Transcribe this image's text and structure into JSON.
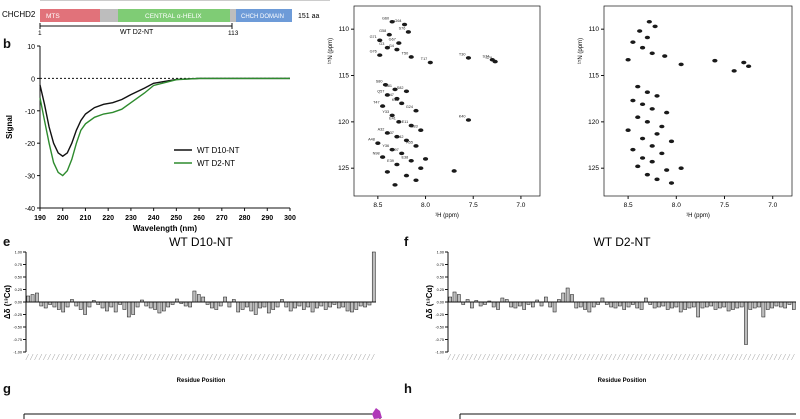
{
  "panels": {
    "b": "b",
    "e": "e",
    "f": "f",
    "g": "g",
    "h": "h"
  },
  "domain_map": {
    "protein": "CHCHD2",
    "length": "151 aa",
    "mts": "MTS",
    "helix": "CENTRAL α-HELIX",
    "chch": "CHCH DOMAIN",
    "construct": "WT D2-NT",
    "start": "1",
    "end": "113"
  },
  "chart_data": [
    {
      "type": "line",
      "id": "cd",
      "xlabel": "Wavelength (nm)",
      "ylabel": "Signal",
      "xlim": [
        190,
        300
      ],
      "ylim": [
        -40,
        10
      ],
      "xticks": [
        190,
        200,
        210,
        220,
        230,
        240,
        250,
        260,
        270,
        280,
        290,
        300
      ],
      "yticks": [
        -40,
        -30,
        -20,
        -10,
        0,
        10
      ],
      "series": [
        {
          "name": "WT D10-NT",
          "color": "#111111",
          "x": [
            190,
            192,
            194,
            196,
            198,
            200,
            202,
            204,
            206,
            208,
            210,
            214,
            218,
            222,
            226,
            230,
            236,
            240,
            250,
            260,
            280,
            300
          ],
          "y": [
            -2,
            -8,
            -15,
            -20,
            -23,
            -24,
            -23,
            -20,
            -16,
            -13,
            -11,
            -9,
            -8,
            -7.5,
            -6.5,
            -5,
            -3,
            -1.5,
            -0.3,
            0,
            0,
            0
          ]
        },
        {
          "name": "WT D2-NT",
          "color": "#2e8b2e",
          "x": [
            190,
            192,
            194,
            196,
            198,
            200,
            202,
            204,
            206,
            208,
            210,
            214,
            218,
            222,
            226,
            230,
            236,
            240,
            250,
            260,
            280,
            300
          ],
          "y": [
            -6,
            -13,
            -20,
            -26,
            -29,
            -30,
            -28.5,
            -25,
            -20,
            -16,
            -14,
            -12,
            -11,
            -10.5,
            -9.5,
            -7.5,
            -4.5,
            -2.2,
            -0.4,
            0,
            0,
            0
          ]
        }
      ]
    },
    {
      "type": "scatter",
      "id": "hsqc1",
      "xlabel": "¹H (ppm)",
      "ylabel": "¹⁵N (ppm)",
      "xticks": [
        8.5,
        8.0,
        7.5,
        7.0
      ],
      "yticks": [
        110,
        115,
        120,
        125
      ],
      "labels": [
        "G60",
        "G64",
        "S76",
        "G58",
        "G71",
        "G67",
        "G3",
        "G4",
        "G76",
        "T50",
        "T17",
        "T30",
        "S74",
        "S79",
        "S80",
        "S81",
        "S82",
        "Q57",
        "S47",
        "K63",
        "T47",
        "G24",
        "Y33",
        "K40",
        "E41",
        "E11",
        "L83",
        "A32",
        "A37",
        "A42",
        "A48",
        "A55",
        "Y36",
        "R97",
        "N98",
        "E38",
        "E39"
      ],
      "points": [
        {
          "x": 8.35,
          "y": 109.2
        },
        {
          "x": 8.22,
          "y": 109.5
        },
        {
          "x": 8.18,
          "y": 110.3
        },
        {
          "x": 8.38,
          "y": 110.6
        },
        {
          "x": 8.48,
          "y": 111.2
        },
        {
          "x": 8.28,
          "y": 111.5
        },
        {
          "x": 8.4,
          "y": 112.0
        },
        {
          "x": 8.3,
          "y": 112.2
        },
        {
          "x": 8.48,
          "y": 112.8
        },
        {
          "x": 8.15,
          "y": 113.0
        },
        {
          "x": 7.95,
          "y": 113.6
        },
        {
          "x": 7.55,
          "y": 113.1
        },
        {
          "x": 7.3,
          "y": 113.3
        },
        {
          "x": 7.27,
          "y": 113.5
        },
        {
          "x": 8.42,
          "y": 116.0
        },
        {
          "x": 8.32,
          "y": 116.5
        },
        {
          "x": 8.2,
          "y": 116.7
        },
        {
          "x": 8.4,
          "y": 117.1
        },
        {
          "x": 8.3,
          "y": 117.5
        },
        {
          "x": 8.25,
          "y": 118.0
        },
        {
          "x": 8.45,
          "y": 118.3
        },
        {
          "x": 8.1,
          "y": 118.8
        },
        {
          "x": 8.35,
          "y": 119.3
        },
        {
          "x": 7.55,
          "y": 119.8
        },
        {
          "x": 8.28,
          "y": 120.0
        },
        {
          "x": 8.15,
          "y": 120.4
        },
        {
          "x": 8.05,
          "y": 120.9
        },
        {
          "x": 8.4,
          "y": 121.2
        },
        {
          "x": 8.3,
          "y": 121.6
        },
        {
          "x": 8.2,
          "y": 122.0
        },
        {
          "x": 8.5,
          "y": 122.3
        },
        {
          "x": 8.1,
          "y": 122.6
        },
        {
          "x": 8.35,
          "y": 123.0
        },
        {
          "x": 8.25,
          "y": 123.4
        },
        {
          "x": 8.45,
          "y": 123.8
        },
        {
          "x": 8.15,
          "y": 124.2
        },
        {
          "x": 8.3,
          "y": 124.6
        },
        {
          "x": 8.05,
          "y": 125.0
        },
        {
          "x": 8.4,
          "y": 125.4
        },
        {
          "x": 8.2,
          "y": 125.8
        },
        {
          "x": 8.1,
          "y": 126.3
        },
        {
          "x": 7.7,
          "y": 125.3
        },
        {
          "x": 8.32,
          "y": 126.8
        },
        {
          "x": 8.0,
          "y": 124.0
        }
      ]
    },
    {
      "type": "scatter",
      "id": "hsqc2",
      "xlabel": "¹H (ppm)",
      "ylabel": "¹⁵N (ppm)",
      "xticks": [
        8.5,
        8.0,
        7.5,
        7.0
      ],
      "yticks": [
        110,
        115,
        120,
        125
      ],
      "points": [
        {
          "x": 8.28,
          "y": 109.2
        },
        {
          "x": 8.22,
          "y": 109.7
        },
        {
          "x": 8.38,
          "y": 110.2
        },
        {
          "x": 8.3,
          "y": 110.9
        },
        {
          "x": 8.45,
          "y": 111.4
        },
        {
          "x": 8.35,
          "y": 112.0
        },
        {
          "x": 8.25,
          "y": 112.6
        },
        {
          "x": 8.12,
          "y": 112.9
        },
        {
          "x": 8.5,
          "y": 113.3
        },
        {
          "x": 7.95,
          "y": 113.8
        },
        {
          "x": 7.6,
          "y": 113.4
        },
        {
          "x": 7.3,
          "y": 113.6
        },
        {
          "x": 7.25,
          "y": 114.0
        },
        {
          "x": 7.4,
          "y": 114.5
        },
        {
          "x": 8.4,
          "y": 116.2
        },
        {
          "x": 8.3,
          "y": 116.8
        },
        {
          "x": 8.2,
          "y": 117.2
        },
        {
          "x": 8.45,
          "y": 117.7
        },
        {
          "x": 8.35,
          "y": 118.1
        },
        {
          "x": 8.25,
          "y": 118.6
        },
        {
          "x": 8.1,
          "y": 119.0
        },
        {
          "x": 8.4,
          "y": 119.5
        },
        {
          "x": 8.3,
          "y": 120.0
        },
        {
          "x": 8.15,
          "y": 120.5
        },
        {
          "x": 8.5,
          "y": 120.9
        },
        {
          "x": 8.2,
          "y": 121.3
        },
        {
          "x": 8.35,
          "y": 121.8
        },
        {
          "x": 8.05,
          "y": 122.1
        },
        {
          "x": 8.25,
          "y": 122.6
        },
        {
          "x": 8.45,
          "y": 123.0
        },
        {
          "x": 8.15,
          "y": 123.4
        },
        {
          "x": 8.35,
          "y": 123.9
        },
        {
          "x": 8.25,
          "y": 124.3
        },
        {
          "x": 8.4,
          "y": 124.8
        },
        {
          "x": 8.1,
          "y": 125.2
        },
        {
          "x": 8.3,
          "y": 125.7
        },
        {
          "x": 8.2,
          "y": 126.2
        },
        {
          "x": 7.95,
          "y": 125.0
        },
        {
          "x": 8.05,
          "y": 126.6
        }
      ]
    },
    {
      "type": "bar",
      "id": "dd1",
      "title": "WT D10-NT",
      "xlabel": "Residue Position",
      "ylabel": "Δδ (¹³Cα)",
      "ylim": [
        -1.0,
        1.0
      ],
      "yticks": [
        -1.0,
        -0.75,
        -0.5,
        -0.25,
        0,
        0.25,
        0.5,
        0.75,
        1.0
      ],
      "ytick_labels": [
        "-1.00",
        "-0.75",
        "-0.50",
        "-0.25",
        "0.00",
        "0.25",
        "0.50",
        "0.75",
        "1.00"
      ],
      "values": [
        0.12,
        0.15,
        0.18,
        -0.08,
        -0.12,
        -0.05,
        -0.1,
        -0.15,
        -0.2,
        -0.1,
        0.05,
        -0.08,
        -0.15,
        -0.25,
        -0.1,
        0.03,
        -0.05,
        -0.12,
        -0.18,
        -0.1,
        -0.2,
        -0.05,
        -0.15,
        -0.3,
        -0.25,
        -0.1,
        0.04,
        -0.08,
        -0.12,
        -0.15,
        -0.22,
        -0.18,
        -0.1,
        -0.05,
        0.06,
        -0.03,
        -0.08,
        -0.1,
        0.22,
        0.15,
        0.1,
        -0.05,
        -0.12,
        -0.15,
        -0.08,
        0.1,
        -0.1,
        0.05,
        -0.2,
        -0.15,
        -0.1,
        -0.18,
        -0.25,
        -0.12,
        -0.1,
        -0.22,
        -0.15,
        -0.1,
        0.05,
        -0.1,
        -0.18,
        -0.12,
        -0.08,
        -0.15,
        -0.1,
        -0.2,
        -0.12,
        -0.08,
        -0.15,
        -0.1,
        -0.05,
        -0.12,
        -0.1,
        -0.18,
        -0.2,
        -0.15,
        -0.08,
        -0.1,
        -0.06,
        1.0
      ]
    },
    {
      "type": "bar",
      "id": "dd2",
      "title": "WT D2-NT",
      "xlabel": "Residue Position",
      "ylabel": "Δδ (¹³Cα)",
      "ylim": [
        -1.0,
        1.0
      ],
      "yticks": [
        -1.0,
        -0.75,
        -0.5,
        -0.25,
        0,
        0.25,
        0.5,
        0.75,
        1.0
      ],
      "ytick_labels": [
        "-1.00",
        "-0.75",
        "-0.50",
        "-0.25",
        "0.00",
        "0.25",
        "0.50",
        "0.75",
        "1.00"
      ],
      "values": [
        0.1,
        0.2,
        0.15,
        -0.05,
        0.05,
        -0.12,
        0.03,
        -0.08,
        -0.05,
        0.02,
        -0.1,
        -0.15,
        0.08,
        0.05,
        -0.1,
        -0.12,
        -0.08,
        -0.15,
        -0.05,
        -0.1,
        0.04,
        -0.08,
        0.1,
        -0.1,
        -0.2,
        0.05,
        0.18,
        0.28,
        0.15,
        -0.12,
        -0.1,
        -0.15,
        -0.2,
        -0.1,
        -0.05,
        0.08,
        -0.05,
        -0.1,
        -0.12,
        -0.08,
        -0.15,
        -0.1,
        -0.05,
        -0.12,
        -0.15,
        0.08,
        -0.05,
        -0.12,
        -0.1,
        -0.08,
        -0.15,
        -0.12,
        -0.1,
        -0.2,
        -0.15,
        -0.12,
        -0.1,
        -0.3,
        -0.12,
        -0.1,
        -0.08,
        -0.15,
        -0.12,
        -0.1,
        -0.18,
        -0.15,
        -0.12,
        -0.1,
        -0.85,
        -0.15,
        -0.12,
        -0.1,
        -0.3,
        -0.15,
        -0.12,
        -0.08,
        -0.1,
        -0.12,
        -0.05,
        -0.15
      ]
    }
  ]
}
